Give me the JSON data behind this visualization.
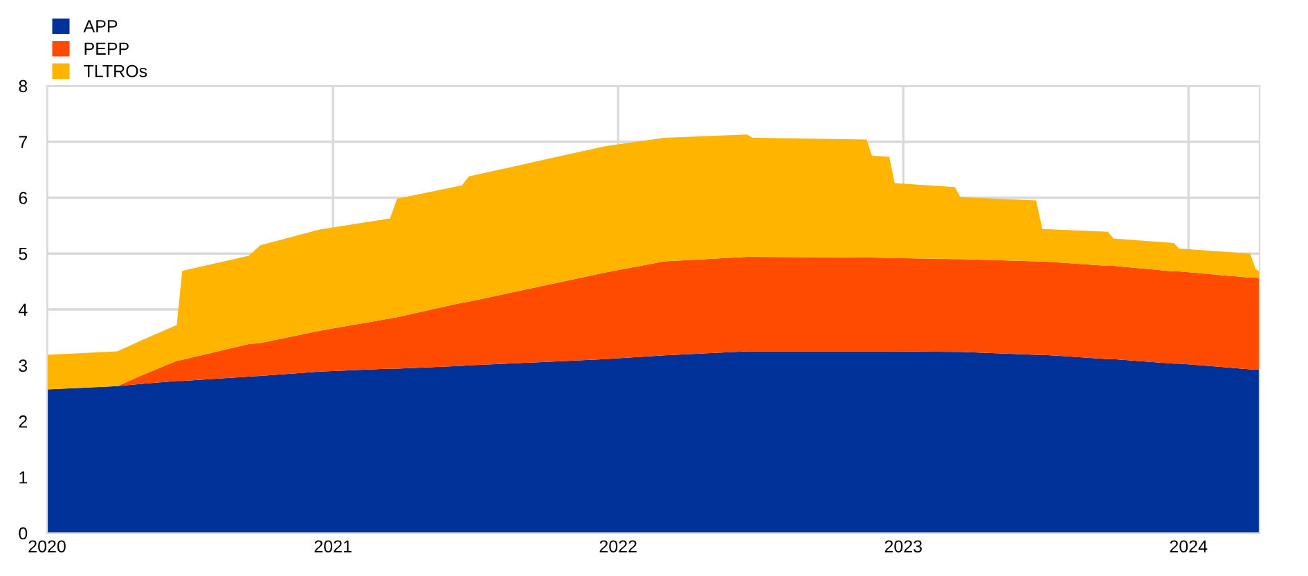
{
  "chart_data": {
    "type": "area",
    "stacked": true,
    "x": [
      "2020-01-01",
      "2020-03-31",
      "2020-05-01",
      "2020-06-15",
      "2020-06-22",
      "2020-09-15",
      "2020-09-30",
      "2020-12-15",
      "2021-03-15",
      "2021-03-24",
      "2021-06-15",
      "2021-06-24",
      "2021-12-15",
      "2022-03-01",
      "2022-06-15",
      "2022-06-22",
      "2022-11-15",
      "2022-11-22",
      "2022-12-14",
      "2022-12-21",
      "2023-03-08",
      "2023-03-15",
      "2023-06-20",
      "2023-06-28",
      "2023-09-20",
      "2023-09-27",
      "2023-12-13",
      "2023-12-20",
      "2024-03-20",
      "2024-03-27",
      "2024-04-01"
    ],
    "series": [
      {
        "name": "APP",
        "color": "#003299",
        "values": [
          2.57,
          2.63,
          2.67,
          2.72,
          2.72,
          2.8,
          2.81,
          2.89,
          2.94,
          2.94,
          2.99,
          3.0,
          3.11,
          3.18,
          3.25,
          3.25,
          3.25,
          3.25,
          3.25,
          3.25,
          3.24,
          3.24,
          3.19,
          3.19,
          3.11,
          3.11,
          3.03,
          3.03,
          2.93,
          2.93,
          2.92
        ]
      },
      {
        "name": "PEPP",
        "color": "#ff4b00",
        "values": [
          0,
          0,
          0.15,
          0.36,
          0.38,
          0.58,
          0.59,
          0.73,
          0.9,
          0.92,
          1.13,
          1.14,
          1.55,
          1.68,
          1.69,
          1.69,
          1.68,
          1.68,
          1.67,
          1.67,
          1.66,
          1.66,
          1.67,
          1.67,
          1.67,
          1.67,
          1.65,
          1.65,
          1.64,
          1.64,
          1.64
        ]
      },
      {
        "name": "TLTROs",
        "color": "#ffb400",
        "values": [
          0.62,
          0.62,
          0.63,
          0.64,
          1.59,
          1.58,
          1.75,
          1.81,
          1.79,
          2.12,
          2.1,
          2.24,
          2.26,
          2.21,
          2.19,
          2.13,
          2.11,
          1.82,
          1.81,
          1.34,
          1.29,
          1.11,
          1.09,
          0.58,
          0.61,
          0.49,
          0.51,
          0.41,
          0.43,
          0.15,
          0.12
        ]
      }
    ],
    "xlim": [
      "2020-01-01",
      "2024-04-01"
    ],
    "xticks": [
      {
        "value": "2020-01-01",
        "label": "2020"
      },
      {
        "value": "2021-01-01",
        "label": "2021"
      },
      {
        "value": "2022-01-01",
        "label": "2022"
      },
      {
        "value": "2023-01-01",
        "label": "2023"
      },
      {
        "value": "2024-01-01",
        "label": "2024"
      }
    ],
    "ylim": [
      0,
      8
    ],
    "yticks": [
      0,
      1,
      2,
      3,
      4,
      5,
      6,
      7,
      8
    ],
    "grid": true,
    "legend": "top left"
  }
}
